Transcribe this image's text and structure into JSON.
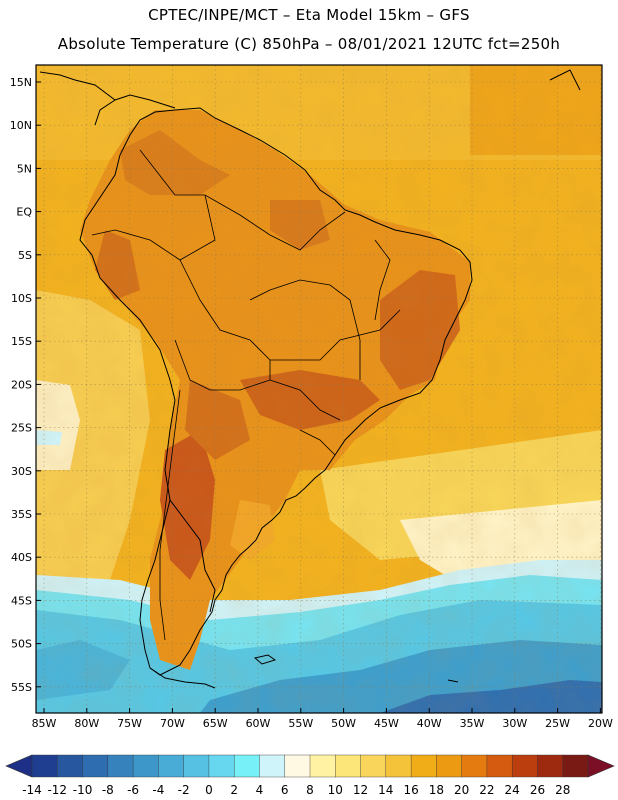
{
  "titles": {
    "line1": "CPTEC/INPE/MCT –  Eta Model 15km – GFS",
    "line2": "Absolute Temperature (C) 850hPa – 08/01/2021 12UTC fct=250h"
  },
  "map": {
    "variable": "Absolute Temperature",
    "units": "C",
    "level": "850hPa",
    "lat_labels": [
      "15N",
      "10N",
      "5N",
      "EQ",
      "5S",
      "10S",
      "15S",
      "20S",
      "25S",
      "30S",
      "35S",
      "40S",
      "45S",
      "50S",
      "55S"
    ],
    "lon_labels": [
      "85W",
      "80W",
      "75W",
      "70W",
      "65W",
      "60W",
      "55W",
      "50W",
      "45W",
      "40W",
      "35W",
      "30W",
      "25W",
      "20W"
    ],
    "colors": {
      "ocean_warm": "#f2b320",
      "land_hot": "#e28a1a",
      "very_hot": "#c55a18",
      "cold_cyan": "#58cfe8",
      "cold_blue": "#3ca3d0",
      "coastline": "#000000"
    }
  },
  "colorbar": {
    "labels": [
      "-14",
      "-12",
      "-10",
      "-8",
      "-6",
      "-4",
      "-2",
      "0",
      "2",
      "4",
      "6",
      "8",
      "10",
      "12",
      "14",
      "16",
      "18",
      "20",
      "22",
      "24",
      "26",
      "28"
    ],
    "colors": [
      "#1f3e8f",
      "#27579f",
      "#2e6db0",
      "#3582bd",
      "#3d98c9",
      "#48acd6",
      "#56c1e3",
      "#66d7ee",
      "#78f0f7",
      "#cff4f9",
      "#fff8e3",
      "#fff3a3",
      "#fde679",
      "#f9d65b",
      "#f5c33a",
      "#f0ad17",
      "#ec9a12",
      "#e47b10",
      "#d45b10",
      "#bb3e0f",
      "#9d2a0e",
      "#7a1a14"
    ],
    "low_arrow_color": "#1d2f86",
    "high_arrow_color": "#7a0f25"
  }
}
